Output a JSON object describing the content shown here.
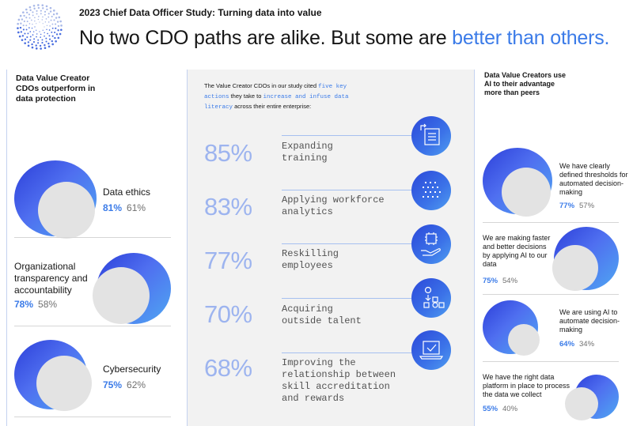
{
  "header": {
    "subtitle": "2023 Chief Data Officer Study: Turning data into value",
    "headline_main": "No two CDO paths are alike. But some are ",
    "headline_accent": "better than others."
  },
  "left": {
    "heading": "Data Value Creator CDOs outperform in data protection",
    "items": [
      {
        "label": "Data ethics",
        "creator_pct": "81%",
        "peer_pct": "61%",
        "creator_value": 81,
        "peer_value": 61
      },
      {
        "label": "Organizational transparency and accountability",
        "creator_pct": "78%",
        "peer_pct": "58%",
        "creator_value": 78,
        "peer_value": 58
      },
      {
        "label": "Cybersecurity",
        "creator_pct": "75%",
        "peer_pct": "62%",
        "creator_value": 75,
        "peer_value": 62
      }
    ]
  },
  "center": {
    "intro_1": "The Value Creator CDOs in our study cited ",
    "intro_highlight_1": "five key actions",
    "intro_2": " they take to ",
    "intro_highlight_2": "increase and infuse data literacy",
    "intro_3": " across their entire enterprise:",
    "actions": [
      {
        "pct": "85%",
        "label": "Expanding training",
        "icon": "training-icon"
      },
      {
        "pct": "83%",
        "label": "Applying workforce analytics",
        "icon": "analytics-icon"
      },
      {
        "pct": "77%",
        "label": "Reskilling employees",
        "icon": "reskilling-icon"
      },
      {
        "pct": "70%",
        "label": "Acquiring outside talent",
        "icon": "talent-icon"
      },
      {
        "pct": "68%",
        "label": "Improving the relationship between skill accreditation and rewards",
        "icon": "accreditation-icon"
      }
    ]
  },
  "right": {
    "heading": "Data Value Creators use AI to their advantage more than peers",
    "items": [
      {
        "label": "We have clearly defined thresholds for automated decision-making",
        "creator_pct": "77%",
        "peer_pct": "57%"
      },
      {
        "label": "We are making faster and better decisions by applying AI to our data",
        "creator_pct": "75%",
        "peer_pct": "54%"
      },
      {
        "label": "We are using AI to automate decision-making",
        "creator_pct": "64%",
        "peer_pct": "34%"
      },
      {
        "label": "We have the right data platform in place to process the data we collect",
        "creator_pct": "55%",
        "peer_pct": "40%"
      }
    ]
  },
  "colors": {
    "accent": "#3b7be8",
    "blue_dark": "#2c3fd9",
    "blue_light": "#4fa7f2",
    "gray_circle": "#e3e3e3",
    "center_bg": "#f2f2f2"
  }
}
